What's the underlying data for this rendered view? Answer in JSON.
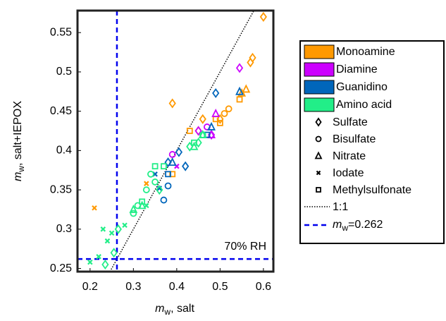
{
  "chart_data": {
    "type": "scatter",
    "x_label": {
      "main": "m",
      "sub": "w",
      "rest": ", salt"
    },
    "y_label": {
      "main": "m",
      "sub": "w",
      "rest": ", salt+IEPOX"
    },
    "annotation": "70% RH",
    "xlim": [
      0.171,
      0.623
    ],
    "ylim": [
      0.246,
      0.578
    ],
    "xticks": [
      0.2,
      0.3,
      0.4,
      0.5,
      0.6
    ],
    "yticks": [
      0.25,
      0.3,
      0.35,
      0.4,
      0.45,
      0.5,
      0.55
    ],
    "series": [
      {
        "name": "Monoamine",
        "color": "#ff9900",
        "x": [
          0.6,
          0.575,
          0.57,
          0.39,
          0.46,
          0.45,
          0.5,
          0.52,
          0.51,
          0.56,
          0.55,
          0.43,
          0.5,
          0.49,
          0.545,
          0.39,
          0.21,
          0.33
        ],
        "values": [
          0.57,
          0.518,
          0.512,
          0.46,
          0.44,
          0.425,
          0.44,
          0.453,
          0.447,
          0.478,
          0.473,
          0.425,
          0.435,
          0.44,
          0.465,
          0.37,
          0.327,
          0.358
        ],
        "markers": [
          "diamond",
          "diamond",
          "diamond",
          "diamond",
          "diamond",
          "diamond",
          "diamond",
          "circle",
          "circle",
          "triangle",
          "triangle",
          "square",
          "square",
          "square",
          "square",
          "square",
          "x",
          "x"
        ]
      },
      {
        "name": "Diamine",
        "color": "#cc00ff",
        "x": [
          0.545,
          0.45,
          0.48,
          0.39,
          0.47,
          0.49,
          0.48,
          0.4
        ],
        "values": [
          0.505,
          0.425,
          0.42,
          0.395,
          0.43,
          0.447,
          0.42,
          0.38
        ],
        "markers": [
          "diamond",
          "diamond",
          "diamond",
          "circle",
          "circle",
          "triangle",
          "triangle",
          "x"
        ]
      },
      {
        "name": "Guanidino",
        "color": "#0066bb",
        "x": [
          0.49,
          0.405,
          0.38,
          0.42,
          0.37,
          0.38,
          0.545,
          0.39,
          0.48,
          0.38,
          0.47,
          0.35,
          0.36
        ],
        "values": [
          0.473,
          0.398,
          0.385,
          0.38,
          0.337,
          0.355,
          0.475,
          0.385,
          0.43,
          0.37,
          0.42,
          0.37,
          0.352
        ],
        "markers": [
          "diamond",
          "diamond",
          "diamond",
          "diamond",
          "circle",
          "circle",
          "triangle",
          "triangle",
          "triangle",
          "square",
          "square",
          "x",
          "x"
        ]
      },
      {
        "name": "Amino acid",
        "color": "#22ee88",
        "x": [
          0.235,
          0.255,
          0.265,
          0.43,
          0.45,
          0.36,
          0.3,
          0.31,
          0.33,
          0.34,
          0.35,
          0.46,
          0.3,
          0.32,
          0.44,
          0.46,
          0.32,
          0.37,
          0.44,
          0.35,
          0.2,
          0.22,
          0.23,
          0.24,
          0.25,
          0.28,
          0.33
        ],
        "values": [
          0.255,
          0.27,
          0.3,
          0.405,
          0.41,
          0.35,
          0.32,
          0.33,
          0.35,
          0.37,
          0.36,
          0.42,
          0.325,
          0.33,
          0.405,
          0.42,
          0.335,
          0.38,
          0.41,
          0.38,
          0.258,
          0.265,
          0.3,
          0.285,
          0.295,
          0.305,
          0.33
        ],
        "markers": [
          "diamond",
          "diamond",
          "diamond",
          "diamond",
          "diamond",
          "diamond",
          "circle",
          "circle",
          "circle",
          "circle",
          "circle",
          "circle",
          "triangle",
          "triangle",
          "triangle",
          "triangle",
          "square",
          "square",
          "square",
          "square",
          "x",
          "x",
          "x",
          "x",
          "x",
          "x",
          "x"
        ]
      }
    ],
    "marker_legend": [
      {
        "name": "Sulfate",
        "marker": "diamond"
      },
      {
        "name": "Bisulfate",
        "marker": "circle"
      },
      {
        "name": "Nitrate",
        "marker": "triangle"
      },
      {
        "name": "Iodate",
        "marker": "x"
      },
      {
        "name": "Methylsulfonate",
        "marker": "square"
      }
    ],
    "one_to_one": {
      "name": "1:1",
      "slope": 1,
      "color": "#000000"
    },
    "threshold": {
      "main": "m",
      "sub": "w",
      "rest": "=0.262",
      "value": 0.262,
      "color": "#0000ee"
    }
  }
}
